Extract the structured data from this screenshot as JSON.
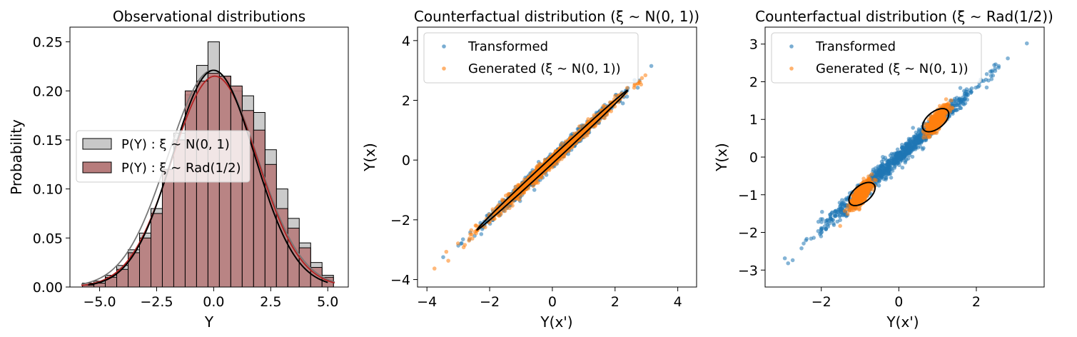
{
  "chart_data": [
    {
      "type": "histogram",
      "title": "Observational distributions",
      "xlabel": "Y",
      "ylabel": "Probability",
      "xlim": [
        -6.3,
        5.9
      ],
      "ylim": [
        0,
        0.265
      ],
      "xticks": [
        -5.0,
        -2.5,
        0.0,
        2.5,
        5.0
      ],
      "xtick_labels": [
        "−5.0",
        "−2.5",
        "0.0",
        "2.5",
        "5.0"
      ],
      "yticks": [
        0,
        0.05,
        0.1,
        0.15,
        0.2,
        0.25
      ],
      "ytick_labels": [
        "0.00",
        "0.05",
        "0.10",
        "0.15",
        "0.20",
        "0.25"
      ],
      "bin_edges": [
        -5.75,
        -5.25,
        -4.75,
        -4.25,
        -3.75,
        -3.25,
        -2.75,
        -2.25,
        -1.75,
        -1.25,
        -0.75,
        -0.25,
        0.25,
        0.75,
        1.25,
        1.75,
        2.25,
        2.75,
        3.25,
        3.75,
        4.25,
        4.75,
        5.25
      ],
      "legend_location": "center-left",
      "series": [
        {
          "name": "$P(Y): \\xi \\sim N(0,1)$",
          "legend_label": "P(Y) : ξ ∼ N(0, 1)",
          "color": "#c8c8c8",
          "values": [
            0.004,
            0.006,
            0.012,
            0.022,
            0.038,
            0.055,
            0.08,
            0.12,
            0.157,
            0.196,
            0.226,
            0.25,
            0.215,
            0.2,
            0.195,
            0.178,
            0.14,
            0.1,
            0.07,
            0.045,
            0.025,
            0.012
          ],
          "kde": {
            "mean": -0.05,
            "std": 1.95,
            "peak": 0.221,
            "color": "#777777"
          }
        },
        {
          "name": "$P(Y): \\xi \\sim Rad(1/2)$",
          "legend_label": "P(Y) : ξ ∼ Rad(1/2)",
          "color": "#b77c7c",
          "values": [
            0.002,
            0.004,
            0.01,
            0.018,
            0.035,
            0.05,
            0.075,
            0.12,
            0.15,
            0.2,
            0.21,
            0.218,
            0.215,
            0.205,
            0.18,
            0.16,
            0.125,
            0.08,
            0.06,
            0.04,
            0.02,
            0.01
          ],
          "kde": {
            "mean": 0.05,
            "std": 1.87,
            "peak": 0.215,
            "color": "#b22222"
          }
        }
      ],
      "fit_line": {
        "mean": 0.0,
        "std": 1.8,
        "peak": 0.221,
        "color": "#000000"
      }
    },
    {
      "type": "scatter",
      "title": "Counterfactual distribution (ξ ∼ N(0, 1))",
      "xlabel": "Y(x')",
      "ylabel": "Y(x)",
      "xlim": [
        -4.3,
        4.6
      ],
      "ylim": [
        -4.25,
        4.45
      ],
      "xticks": [
        -4,
        -2,
        0,
        2,
        4
      ],
      "xtick_labels": [
        "−4",
        "−2",
        "0",
        "2",
        "4"
      ],
      "yticks": [
        -4,
        -2,
        0,
        2,
        4
      ],
      "ytick_labels": [
        "−4",
        "−2",
        "0",
        "2",
        "4"
      ],
      "legend_location": "top-left",
      "series": [
        {
          "name": "Transformed",
          "color": "#1f77b4",
          "distribution": "correlated normal",
          "x_std": 1.0,
          "slope": 0.97,
          "noise_std": 0.11,
          "n": 1000
        },
        {
          "name": "Generated (ξ ∼ N(0, 1))",
          "color": "#ff7f0e",
          "distribution": "correlated normal",
          "x_std": 1.0,
          "slope": 0.97,
          "noise_std": 0.1,
          "n": 1000
        }
      ],
      "ellipses": [
        {
          "center": [
            0,
            0
          ],
          "semi_major": 3.35,
          "semi_minor": 0.085,
          "angle_deg": 44.2,
          "color": "#000000"
        }
      ]
    },
    {
      "type": "scatter",
      "title": "Counterfactual distribution  (ξ ∼ Rad(1/2))",
      "xlabel": "Y(x')",
      "ylabel": "Y(x)",
      "xlim": [
        -3.45,
        3.75
      ],
      "ylim": [
        -3.45,
        3.45
      ],
      "xticks": [
        -2,
        0,
        2
      ],
      "xtick_labels": [
        "−2",
        "0",
        "2"
      ],
      "yticks": [
        -3,
        -2,
        -1,
        0,
        1,
        2,
        3
      ],
      "ytick_labels": [
        "−3",
        "−2",
        "−1",
        "0",
        "1",
        "2",
        "3"
      ],
      "legend_location": "top-left",
      "series": [
        {
          "name": "Transformed",
          "color": "#1f77b4",
          "distribution": "correlated normal",
          "x_std": 1.0,
          "slope": 0.95,
          "noise_std": 0.12,
          "n": 1000
        },
        {
          "name": "Generated (ξ ∼ N(0, 1))",
          "color": "#ff7f0e",
          "distribution": "two clusters",
          "clusters": [
            [
              -0.98,
              -0.98
            ],
            [
              0.98,
              0.98
            ]
          ],
          "cluster_std": 0.14,
          "n": 1000
        }
      ],
      "ellipses": [
        {
          "center": [
            -0.95,
            -0.98
          ],
          "semi_major": 0.4,
          "semi_minor": 0.22,
          "angle_deg": 40,
          "color": "#000000"
        },
        {
          "center": [
            0.95,
            0.98
          ],
          "semi_major": 0.4,
          "semi_minor": 0.22,
          "angle_deg": 40,
          "color": "#000000"
        }
      ]
    }
  ]
}
